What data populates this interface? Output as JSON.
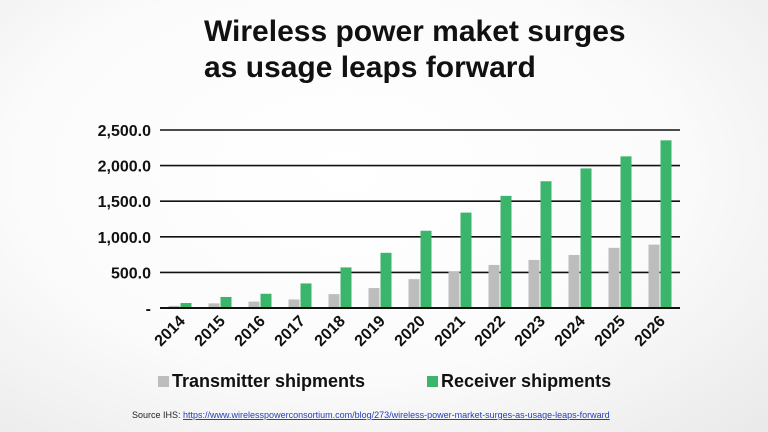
{
  "chart_data": {
    "type": "bar",
    "title_lines": [
      "Wireless power maket surges",
      "as usage leaps forward"
    ],
    "categories": [
      "2014",
      "2015",
      "2016",
      "2017",
      "2018",
      "2019",
      "2020",
      "2021",
      "2022",
      "2023",
      "2024",
      "2025",
      "2026"
    ],
    "series": [
      {
        "name": "Transmitter shipments",
        "color": "#bdbdbd",
        "values": [
          30,
          65,
          90,
          120,
          195,
          280,
          405,
          510,
          605,
          675,
          745,
          845,
          890
        ]
      },
      {
        "name": "Receiver shipments",
        "color": "#3bb56c",
        "values": [
          70,
          155,
          200,
          345,
          570,
          775,
          1085,
          1340,
          1575,
          1780,
          1960,
          2130,
          2355
        ]
      }
    ],
    "ylim": [
      0,
      2500
    ],
    "yticks": [
      0,
      500,
      1000,
      1500,
      2000,
      2500
    ],
    "ytick_labels": [
      "-",
      "500.0",
      "1,000.0",
      "1,500.0",
      "2,000.0",
      "2,500.0"
    ],
    "grid": true,
    "legend_position": "bottom",
    "xlabel": "",
    "ylabel": ""
  },
  "source": {
    "prefix": "Source IHS: ",
    "link": "https://www.wirelesspowerconsortium.com/blog/273/wireless-power-market-surges-as-usage-leaps-forward"
  }
}
